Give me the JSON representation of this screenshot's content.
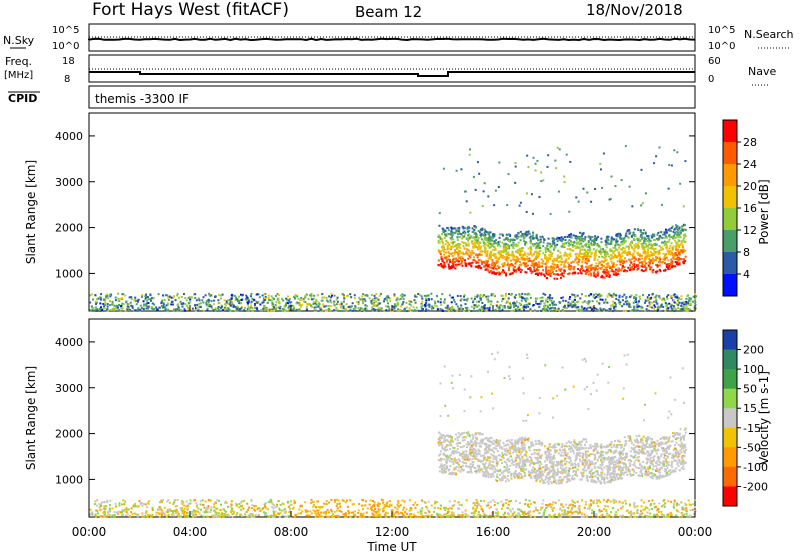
{
  "header": {
    "station": "Fort Hays West (fitACF)",
    "beam": "Beam 12",
    "date": "18/Nov/2018"
  },
  "top_panels": {
    "nsky_label": "N.Sky",
    "nsky_tick_top": "10^5",
    "nsky_tick_bottom": "10^0",
    "nsearch_label": "N.Search",
    "nsearch_tick_top": "10^5",
    "nsearch_tick_bottom": "10^0",
    "freq_label": "Freq.",
    "freq_unit": "[MHz]",
    "freq_tick_top": "18",
    "freq_tick_bottom": "8",
    "nave_label": "Nave",
    "nave_tick_top": "60",
    "nave_tick_bottom": "0",
    "cpid_label": "CPID",
    "cpid_value": "themis -3300 IF"
  },
  "power_colorbar": {
    "label": "Power [dB]",
    "ticks": [
      "28",
      "24",
      "20",
      "16",
      "12",
      "8",
      "4"
    ],
    "colors": [
      "#ff0000",
      "#ff5a00",
      "#ff9a00",
      "#f2c200",
      "#92cc3a",
      "#4a9e6a",
      "#2a5aa8",
      "#0010ff"
    ]
  },
  "velocity_colorbar": {
    "label": "Velocity [m s-1]",
    "ticks": [
      "200",
      "100",
      "50",
      "15",
      "-15",
      "-50",
      "-100",
      "-200"
    ],
    "colors": [
      "#1b3fa8",
      "#2f8a64",
      "#3ea246",
      "#8fd84a",
      "#c8c8c8",
      "#f2c400",
      "#ff9a00",
      "#ff6a00",
      "#ff0000"
    ]
  },
  "chart_data": [
    {
      "type": "heatmap",
      "title": "Power",
      "xlabel": "Time UT",
      "ylabel": "Slant Range [km]",
      "x_ticks": [
        "00:00",
        "04:00",
        "08:00",
        "12:00",
        "16:00",
        "20:00",
        "00:00"
      ],
      "y_ticks": [
        "1000",
        "2000",
        "3000",
        "4000"
      ],
      "xlim": [
        0,
        24
      ],
      "ylim": [
        180,
        4500
      ],
      "features": [
        {
          "name": "near-range scatter",
          "t_start": 0,
          "t_end": 24,
          "range_km": [
            200,
            450
          ],
          "power_db": [
            4,
            20
          ]
        },
        {
          "name": "far-range band",
          "t_start": 13.8,
          "t_end": 23.6,
          "range_km": [
            1100,
            2100
          ],
          "power_db": [
            8,
            30
          ]
        }
      ]
    },
    {
      "type": "heatmap",
      "title": "Velocity",
      "xlabel": "Time UT",
      "ylabel": "Slant Range [km]",
      "x_ticks": [
        "00:00",
        "04:00",
        "08:00",
        "12:00",
        "16:00",
        "20:00",
        "00:00"
      ],
      "y_ticks": [
        "1000",
        "2000",
        "3000",
        "4000"
      ],
      "xlim": [
        0,
        24
      ],
      "ylim": [
        180,
        4500
      ],
      "features": [
        {
          "name": "near-range scatter",
          "t_start": 0,
          "t_end": 24,
          "range_km": [
            200,
            500
          ],
          "velocity_ms": [
            -100,
            50
          ]
        },
        {
          "name": "far-range band",
          "t_start": 13.8,
          "t_end": 23.6,
          "range_km": [
            1100,
            2100
          ],
          "velocity_ms": [
            -15,
            15
          ]
        }
      ]
    }
  ]
}
